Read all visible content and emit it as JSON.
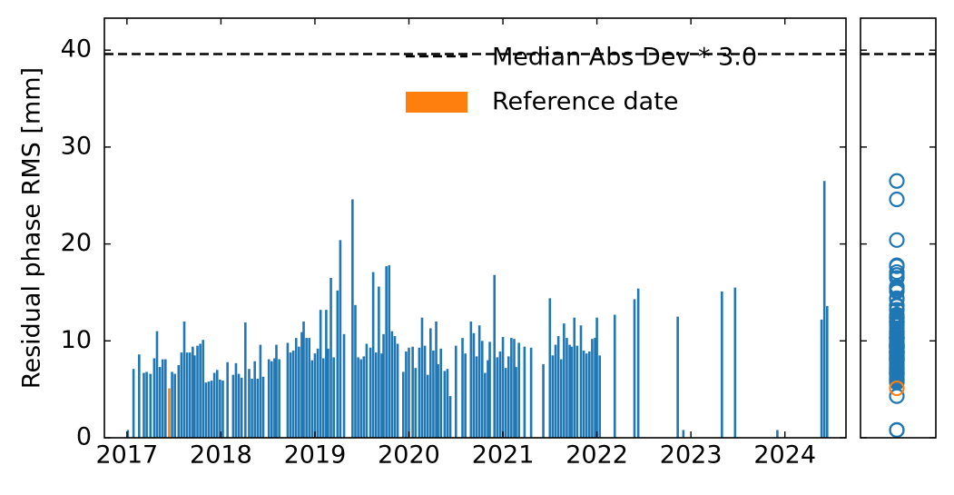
{
  "chart_data": {
    "type": "bar",
    "ylabel": "Residual phase RMS [mm]",
    "color": "#1f77b4",
    "x": [
      2017.01,
      2017.07,
      2017.13,
      2017.18,
      2017.21,
      2017.25,
      2017.29,
      2017.32,
      2017.35,
      2017.38,
      2017.41,
      2017.48,
      2017.51,
      2017.55,
      2017.58,
      2017.61,
      2017.64,
      2017.67,
      2017.7,
      2017.72,
      2017.75,
      2017.78,
      2017.81,
      2017.84,
      2017.87,
      2017.9,
      2017.93,
      2017.96,
      2017.99,
      2018.02,
      2018.07,
      2018.13,
      2018.16,
      2018.19,
      2018.22,
      2018.26,
      2018.3,
      2018.33,
      2018.36,
      2018.39,
      2018.42,
      2018.45,
      2018.51,
      2018.54,
      2018.57,
      2018.59,
      2018.62,
      2018.71,
      2018.74,
      2018.77,
      2018.8,
      2018.83,
      2018.86,
      2018.88,
      2018.91,
      2018.94,
      2018.97,
      2019.0,
      2019.03,
      2019.06,
      2019.09,
      2019.12,
      2019.14,
      2019.17,
      2019.2,
      2019.24,
      2019.27,
      2019.31,
      2019.4,
      2019.43,
      2019.46,
      2019.49,
      2019.52,
      2019.55,
      2019.59,
      2019.62,
      2019.65,
      2019.68,
      2019.71,
      2019.73,
      2019.76,
      2019.79,
      2019.82,
      2019.85,
      2019.88,
      2019.94,
      2019.97,
      2020.0,
      2020.04,
      2020.07,
      2020.11,
      2020.14,
      2020.17,
      2020.2,
      2020.23,
      2020.26,
      2020.29,
      2020.31,
      2020.34,
      2020.38,
      2020.41,
      2020.44,
      2020.5,
      2020.57,
      2020.6,
      2020.66,
      2020.69,
      2020.72,
      2020.75,
      2020.78,
      2020.81,
      2020.84,
      2020.86,
      2020.91,
      2020.94,
      2020.97,
      2021.0,
      2021.03,
      2021.06,
      2021.09,
      2021.12,
      2021.14,
      2021.17,
      2021.23,
      2021.3,
      2021.43,
      2021.5,
      2021.53,
      2021.56,
      2021.59,
      2021.62,
      2021.65,
      2021.68,
      2021.71,
      2021.73,
      2021.76,
      2021.79,
      2021.83,
      2021.86,
      2021.89,
      2021.92,
      2021.95,
      2021.98,
      2022.0,
      2022.03,
      2022.19,
      2022.4,
      2022.44,
      2022.86,
      2022.92,
      2023.33,
      2023.47,
      2023.92,
      2024.39,
      2024.42,
      2024.45
    ],
    "values": [
      0.8,
      7.1,
      8.6,
      6.7,
      6.8,
      6.6,
      8.2,
      11.0,
      7.3,
      8.1,
      8.1,
      6.8,
      6.6,
      7.5,
      8.8,
      12.0,
      8.8,
      8.8,
      9.4,
      8.5,
      9.5,
      9.7,
      10.1,
      5.7,
      5.8,
      5.9,
      6.7,
      7.0,
      6.0,
      5.9,
      7.8,
      6.5,
      7.7,
      6.6,
      6.2,
      11.9,
      7.1,
      6.1,
      7.9,
      6.1,
      9.6,
      6.3,
      8.1,
      7.9,
      8.2,
      9.6,
      8.1,
      9.8,
      8.8,
      9.0,
      10.3,
      9.4,
      10.9,
      12.0,
      10.3,
      10.3,
      8.0,
      8.7,
      9.2,
      13.2,
      8.2,
      13.2,
      9.2,
      16.5,
      8.3,
      15.2,
      20.4,
      10.7,
      24.6,
      13.7,
      8.3,
      8.1,
      8.4,
      9.7,
      9.3,
      17.1,
      8.8,
      15.6,
      8.7,
      10.7,
      17.7,
      17.8,
      11.0,
      10.5,
      9.7,
      6.8,
      8.9,
      9.3,
      9.4,
      7.2,
      9.3,
      12.4,
      9.5,
      6.5,
      11.3,
      9.0,
      12.0,
      7.6,
      9.2,
      6.9,
      7.1,
      4.3,
      9.5,
      10.3,
      8.7,
      12.0,
      10.8,
      8.4,
      11.6,
      10.0,
      6.7,
      8.0,
      9.9,
      16.8,
      8.3,
      8.9,
      10.4,
      7.2,
      8.4,
      10.3,
      10.2,
      7.3,
      9.8,
      9.4,
      9.3,
      7.6,
      14.4,
      8.5,
      9.6,
      10.5,
      8.1,
      11.8,
      10.3,
      9.6,
      9.4,
      12.4,
      9.5,
      11.6,
      9.0,
      8.7,
      8.9,
      10.2,
      10.3,
      12.4,
      8.5,
      12.7,
      14.3,
      15.4,
      12.5,
      0.8,
      15.1,
      15.5,
      0.8,
      12.2,
      26.5,
      13.6
    ],
    "reference": {
      "name": "Reference date",
      "x": 2017.45,
      "value": 5.1,
      "color": "#ff7f0e"
    },
    "threshold": {
      "label": "Median Abs Dev * 3.0",
      "value": 39.6,
      "color": "#000000"
    },
    "xlim": [
      2016.76,
      2024.65
    ],
    "xticks": [
      2017,
      2018,
      2019,
      2020,
      2021,
      2022,
      2023,
      2024
    ],
    "ylim": [
      0,
      43.3
    ],
    "yticks": [
      0,
      10,
      20,
      30,
      40
    ]
  }
}
